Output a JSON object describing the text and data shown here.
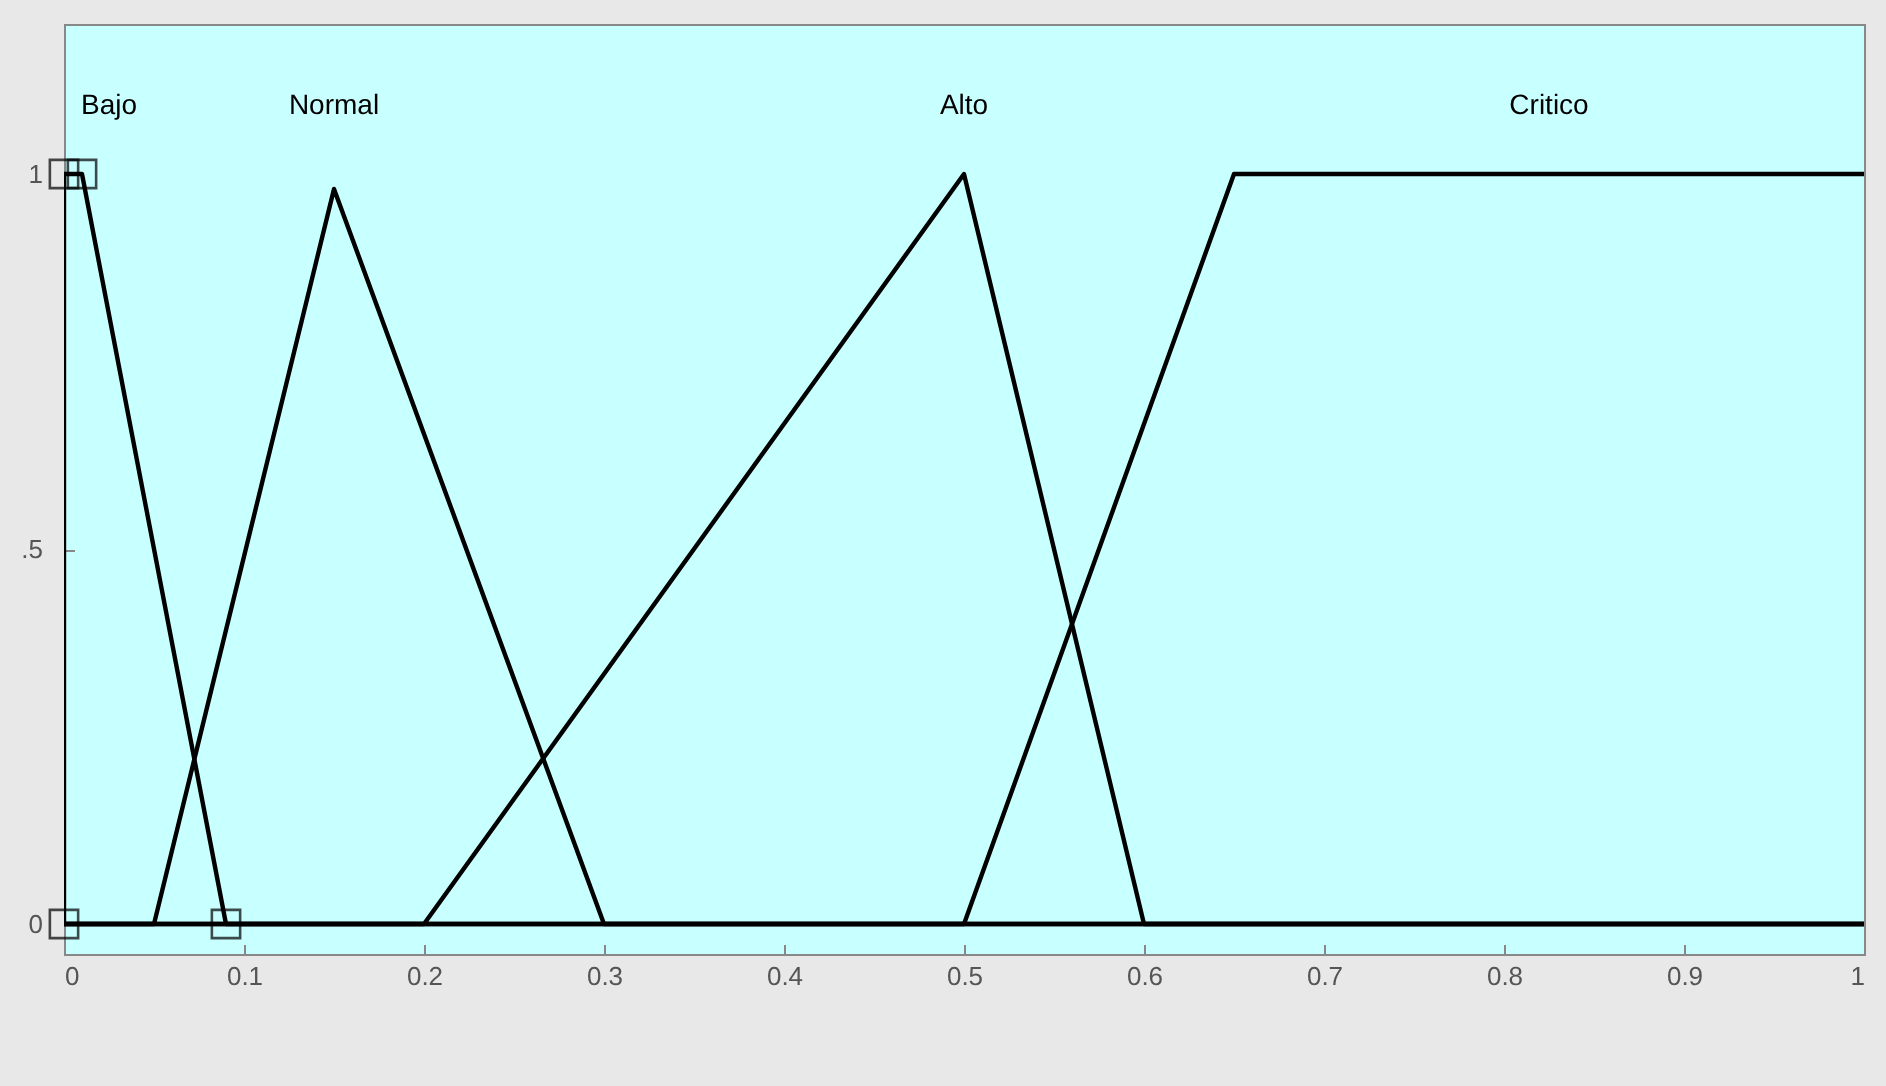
{
  "chart_data": {
    "type": "line",
    "xlim": [
      0,
      1
    ],
    "ylim": [
      -0.04,
      1.2
    ],
    "xticks": [
      0,
      0.1,
      0.2,
      0.3,
      0.4,
      0.5,
      0.6,
      0.7,
      0.8,
      0.9,
      1
    ],
    "yticks": [
      0,
      {
        "value": 0.5,
        "label": ".5"
      },
      1
    ],
    "grid": false,
    "series": [
      {
        "name": "Bajo",
        "type": "line",
        "color": "#000000",
        "x": [
          0,
          0,
          0.01,
          0.09,
          1
        ],
        "values": [
          0,
          1,
          1,
          0,
          0
        ]
      },
      {
        "name": "Normal",
        "type": "line",
        "color": "#000000",
        "x": [
          0,
          0.05,
          0.15,
          0.3,
          1
        ],
        "values": [
          0,
          0,
          0.98,
          0,
          0
        ]
      },
      {
        "name": "Alto",
        "type": "line",
        "color": "#000000",
        "x": [
          0,
          0.2,
          0.5,
          0.6,
          1
        ],
        "values": [
          0,
          0,
          1,
          0,
          0
        ]
      },
      {
        "name": "Critico",
        "type": "line",
        "color": "#000000",
        "x": [
          0,
          0.5,
          0.65,
          1
        ],
        "values": [
          0,
          0,
          1,
          1
        ]
      },
      {
        "type": "scatter",
        "marker": "square",
        "color": "#000000",
        "x": [
          0,
          0,
          0.01,
          0.09
        ],
        "values": [
          0,
          1,
          1,
          0
        ]
      }
    ]
  }
}
